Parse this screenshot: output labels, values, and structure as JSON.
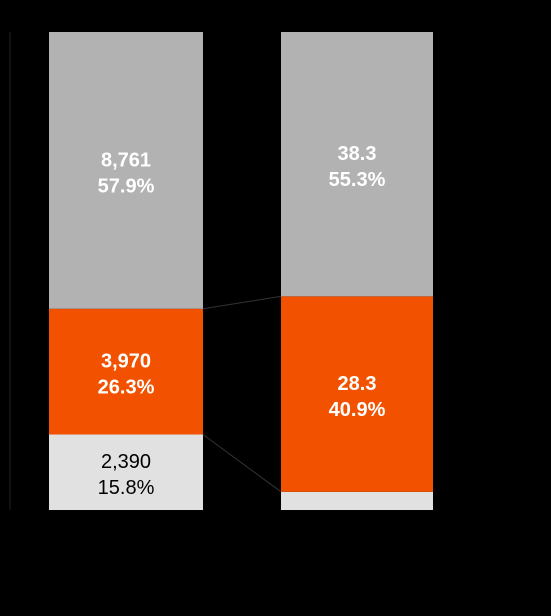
{
  "chart_data": {
    "type": "bar",
    "stacked": true,
    "percent_stacked": true,
    "categories": [
      "",
      ""
    ],
    "segments": [
      "top",
      "middle",
      "bottom"
    ],
    "colors": {
      "top": "#B2B2B2",
      "middle": "#F25200",
      "bottom": "#E1E1E1",
      "background": "#000000"
    },
    "bars": [
      {
        "segments": [
          {
            "key": "top",
            "value_label": "8,761",
            "percent_label": "57.9%",
            "percent": 57.9,
            "bold": true,
            "text_color": "#FFFFFF"
          },
          {
            "key": "middle",
            "value_label": "3,970",
            "percent_label": "26.3%",
            "percent": 26.3,
            "bold": true,
            "text_color": "#FFFFFF"
          },
          {
            "key": "bottom",
            "value_label": "2,390",
            "percent_label": "15.8%",
            "percent": 15.8,
            "bold": false,
            "text_color": "#000000"
          }
        ]
      },
      {
        "segments": [
          {
            "key": "top",
            "value_label": "38.3",
            "percent_label": "55.3%",
            "percent": 55.3,
            "bold": true,
            "text_color": "#FFFFFF"
          },
          {
            "key": "middle",
            "value_label": "28.3",
            "percent_label": "40.9%",
            "percent": 40.9,
            "bold": true,
            "text_color": "#FFFFFF"
          },
          {
            "key": "bottom",
            "value_label": "",
            "percent_label": "",
            "percent": 3.8,
            "bold": false,
            "text_color": "#000000"
          }
        ]
      }
    ],
    "ylim": [
      0,
      100
    ],
    "grid": false,
    "legend": "none"
  }
}
